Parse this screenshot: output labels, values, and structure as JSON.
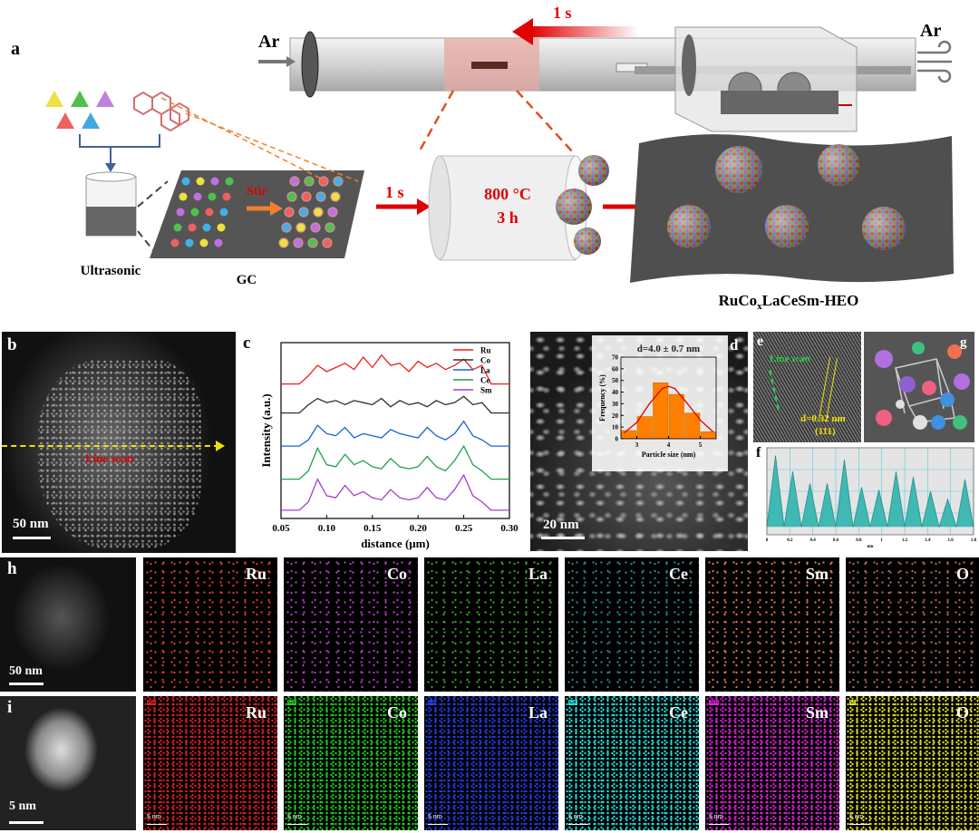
{
  "panel_a": {
    "label": "a",
    "ar_in": "Ar",
    "ar_out": "Ar",
    "move_time": "1 s",
    "stir": "Stir",
    "transfer_time": "1 s",
    "temperature": "800 °C",
    "duration": "3 h",
    "ultrasonic": "Ultrasonic",
    "substrate": "GC",
    "product": {
      "main": "RuCo",
      "subscript": "x",
      "rest": "LaCeSm-HEO"
    }
  },
  "panel_b": {
    "label": "b",
    "line_scan": "Line scan",
    "scale_bar": "50 nm"
  },
  "panel_d": {
    "scale_bar": "20 nm"
  },
  "panel_e": {
    "label": "e",
    "line_scan": "Line scan",
    "spacing": "d=0.32 nm",
    "plane": "(111)"
  },
  "panel_g": {
    "label": "g"
  },
  "panel_h": {
    "label": "h",
    "scale_bar": "50 nm",
    "maps": [
      "Ru",
      "Co",
      "La",
      "Ce",
      "Sm",
      "O"
    ]
  },
  "panel_i": {
    "label": "i",
    "scale_bar": "5 nm",
    "maps": [
      "Ru",
      "Co",
      "La",
      "Ce",
      "Sm",
      "O"
    ],
    "tags": [
      "Ru",
      "Co",
      "La",
      "Ce",
      "Sm",
      "O"
    ],
    "map_scale_bar": "5 nm"
  },
  "chart_data": [
    {
      "type": "line",
      "label": "c",
      "xlabel": "distance (μm)",
      "ylabel": "Intensity (a.u.)",
      "legend": "top-right",
      "x": [
        0.05,
        0.06,
        0.07,
        0.08,
        0.09,
        0.1,
        0.11,
        0.12,
        0.13,
        0.14,
        0.15,
        0.16,
        0.17,
        0.18,
        0.19,
        0.2,
        0.21,
        0.22,
        0.23,
        0.24,
        0.25,
        0.26,
        0.27,
        0.28,
        0.29,
        0.3
      ],
      "series": [
        {
          "name": "Ru",
          "color": "#e82020",
          "values": [
            8,
            8,
            8,
            8.4,
            8.9,
            8.6,
            8.8,
            9.0,
            8.7,
            9.3,
            8.8,
            9.4,
            8.9,
            9.0,
            8.6,
            9.1,
            8.8,
            9.0,
            8.7,
            8.9,
            9.2,
            8.7,
            8.9,
            8,
            8,
            8
          ]
        },
        {
          "name": "Co",
          "color": "#303030",
          "values": [
            6.6,
            6.6,
            6.6,
            7.0,
            7.3,
            7.1,
            7.2,
            7.0,
            7.2,
            7.1,
            7.0,
            7.3,
            6.9,
            7.2,
            7.0,
            7.1,
            6.9,
            7.2,
            7.0,
            7.1,
            7.4,
            7.0,
            7.1,
            6.6,
            6.6,
            6.6
          ]
        },
        {
          "name": "La",
          "color": "#1860d8",
          "values": [
            5,
            5,
            5,
            5.3,
            6.0,
            5.6,
            5.5,
            5.9,
            5.4,
            5.6,
            5.5,
            5.4,
            5.8,
            5.6,
            5.5,
            5.4,
            5.9,
            5.5,
            5.3,
            5.6,
            6.2,
            5.5,
            5.3,
            5,
            5,
            5
          ]
        },
        {
          "name": "Ce",
          "color": "#20a050",
          "values": [
            3.4,
            3.4,
            3.4,
            3.8,
            4.9,
            4.1,
            4.0,
            4.6,
            4.1,
            4.3,
            4.0,
            3.9,
            4.4,
            4.0,
            3.9,
            4.0,
            4.5,
            4.0,
            3.8,
            4.3,
            5.0,
            4.1,
            3.8,
            3.4,
            3.4,
            3.4
          ]
        },
        {
          "name": "Sm",
          "color": "#a040d0",
          "values": [
            1.9,
            1.9,
            1.9,
            2.3,
            3.4,
            2.6,
            2.5,
            3.1,
            2.6,
            2.8,
            2.5,
            2.4,
            2.9,
            2.5,
            2.4,
            2.5,
            3.0,
            2.5,
            2.4,
            2.9,
            3.6,
            2.6,
            2.3,
            1.9,
            1.9,
            1.9
          ]
        }
      ],
      "xlim": [
        0.05,
        0.3
      ],
      "xticks": [
        0.05,
        {
          "value": 0.1,
          "label": "0.10"
        },
        0.15,
        {
          "value": 0.2,
          "label": "0.20"
        },
        0.25,
        {
          "value": 0.3,
          "label": "0.30"
        }
      ],
      "ylim": [
        1.5,
        10
      ]
    },
    {
      "type": "histogram",
      "label": "d",
      "annotation": "d=4.0 ± 0.7 nm",
      "xlabel": "Particle size (nm)",
      "ylabel": "Frequency (%)",
      "bins": [
        2.5,
        3,
        3.5,
        4,
        4.5,
        5,
        5.5
      ],
      "values": [
        7,
        19,
        48,
        38,
        22,
        6
      ],
      "color": "#ff8000",
      "fit": {
        "x": [
          2.6,
          3,
          3.4,
          3.8,
          4.0,
          4.2,
          4.6,
          5,
          5.4
        ],
        "values": [
          5,
          14,
          30,
          43,
          45,
          43,
          30,
          16,
          6
        ],
        "color": "#e00000"
      },
      "xlim": [
        2.5,
        5.5
      ],
      "xticks": [
        3,
        4,
        5
      ],
      "ylim": [
        0,
        70
      ],
      "yticks": [
        0,
        10,
        20,
        30,
        40,
        50,
        60,
        70
      ]
    },
    {
      "type": "area",
      "label": "f",
      "xlabel": "nm",
      "color": "#40b8b4",
      "x": [
        0,
        0.075,
        0.15,
        0.225,
        0.3,
        0.375,
        0.45,
        0.525,
        0.6,
        0.675,
        0.75,
        0.825,
        0.9,
        0.975,
        1.05,
        1.125,
        1.2,
        1.275,
        1.35,
        1.425,
        1.5,
        1.575,
        1.65,
        1.725,
        1.8
      ],
      "values": [
        1,
        10,
        1,
        8,
        1,
        6.5,
        1,
        6.5,
        1,
        9.5,
        1,
        6,
        1,
        5.7,
        1,
        8,
        1,
        7.3,
        1,
        5.5,
        1,
        4.5,
        1,
        7,
        1
      ],
      "xlim": [
        0,
        1.8
      ],
      "xticks": [
        0,
        0.2,
        0.4,
        0.6,
        0.8,
        1,
        1.2,
        1.4,
        1.6,
        1.8
      ],
      "ylim": [
        0,
        11
      ],
      "grid": true
    }
  ]
}
